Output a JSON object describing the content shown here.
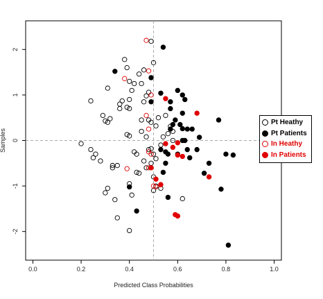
{
  "chart_data": {
    "type": "scatter",
    "title": "",
    "xlabel": "Predicted Class Probabilities",
    "ylabel": "Samples",
    "xlim": [
      -0.03,
      1.03
    ],
    "ylim": [
      -2.63,
      2.63
    ],
    "xticks": [
      "0.0",
      "0.2",
      "0.4",
      "0.6",
      "0.8",
      "1.0"
    ],
    "xtick_values": [
      0,
      0.2,
      0.4,
      0.6,
      0.8,
      1.0
    ],
    "yticks": [
      "-2",
      "-1",
      "0",
      "1",
      "2"
    ],
    "ytick_values": [
      -2,
      -1,
      0,
      1,
      2
    ],
    "reference_lines": {
      "x": 0.5,
      "y": 0
    },
    "grid": false,
    "legend_position": "right",
    "series": [
      {
        "name": "Pt Heathy",
        "color": "#000000",
        "filled": false,
        "points": [
          [
            0.49,
            2.18
          ],
          [
            0.5,
            1.71
          ],
          [
            0.38,
            1.78
          ],
          [
            0.39,
            1.6
          ],
          [
            0.46,
            1.55
          ],
          [
            0.44,
            1.46
          ],
          [
            0.4,
            1.3
          ],
          [
            0.42,
            1.25
          ],
          [
            0.45,
            1.25
          ],
          [
            0.31,
            1.15
          ],
          [
            0.41,
            1.1
          ],
          [
            0.48,
            1.06
          ],
          [
            0.47,
            0.98
          ],
          [
            0.4,
            0.9
          ],
          [
            0.37,
            0.87
          ],
          [
            0.24,
            0.87
          ],
          [
            0.46,
            0.85
          ],
          [
            0.36,
            0.8
          ],
          [
            0.36,
            0.7
          ],
          [
            0.4,
            0.7
          ],
          [
            0.39,
            0.73
          ],
          [
            0.29,
            0.55
          ],
          [
            0.32,
            0.48
          ],
          [
            0.3,
            0.43
          ],
          [
            0.31,
            0.4
          ],
          [
            0.45,
            0.45
          ],
          [
            0.48,
            0.45
          ],
          [
            0.49,
            0.4
          ],
          [
            0.51,
            0.32
          ],
          [
            0.57,
            0.31
          ],
          [
            0.58,
            0.2
          ],
          [
            0.56,
            0.15
          ],
          [
            0.39,
            0.13
          ],
          [
            0.4,
            0.1
          ],
          [
            0.47,
            0.08
          ],
          [
            0.54,
            0.08
          ],
          [
            0.2,
            -0.07
          ],
          [
            0.24,
            -0.2
          ],
          [
            0.26,
            -0.3
          ],
          [
            0.25,
            -0.38
          ],
          [
            0.28,
            -0.45
          ],
          [
            0.33,
            -0.55
          ],
          [
            0.35,
            -0.55
          ],
          [
            0.33,
            -0.6
          ],
          [
            0.42,
            -0.25
          ],
          [
            0.43,
            -0.3
          ],
          [
            0.48,
            -0.2
          ],
          [
            0.49,
            -0.18
          ],
          [
            0.5,
            -0.3
          ],
          [
            0.51,
            -0.4
          ],
          [
            0.46,
            -0.45
          ],
          [
            0.49,
            -0.5
          ],
          [
            0.47,
            -0.6
          ],
          [
            0.43,
            -0.7
          ],
          [
            0.44,
            -0.72
          ],
          [
            0.4,
            -0.95
          ],
          [
            0.41,
            -1.2
          ],
          [
            0.31,
            -1.05
          ],
          [
            0.3,
            -1.15
          ],
          [
            0.34,
            -1.3
          ],
          [
            0.35,
            -1.7
          ],
          [
            0.4,
            -1.98
          ],
          [
            0.5,
            -1.1
          ],
          [
            0.51,
            -1.0
          ],
          [
            0.53,
            -1.05
          ],
          [
            0.62,
            -1.28
          ],
          [
            0.5,
            -0.8
          ],
          [
            0.52,
            0.5
          ],
          [
            0.55,
            0.55
          ],
          [
            0.45,
            0.2
          ],
          [
            0.53,
            -0.1
          ],
          [
            0.58,
            0.0
          ]
        ]
      },
      {
        "name": "Pt Patients",
        "color": "#000000",
        "filled": true,
        "points": [
          [
            0.54,
            2.05
          ],
          [
            0.34,
            1.52
          ],
          [
            0.49,
            1.38
          ],
          [
            0.53,
            1.04
          ],
          [
            0.6,
            1.1
          ],
          [
            0.62,
            1.0
          ],
          [
            0.63,
            0.9
          ],
          [
            0.57,
            0.85
          ],
          [
            0.49,
            0.85
          ],
          [
            0.62,
            0.6
          ],
          [
            0.59,
            0.45
          ],
          [
            0.58,
            0.35
          ],
          [
            0.57,
            0.25
          ],
          [
            0.61,
            0.35
          ],
          [
            0.62,
            0.26
          ],
          [
            0.64,
            0.25
          ],
          [
            0.66,
            0.25
          ],
          [
            0.69,
            0.07
          ],
          [
            0.63,
            0.0
          ],
          [
            0.62,
            0.0
          ],
          [
            0.64,
            -0.2
          ],
          [
            0.53,
            -0.2
          ],
          [
            0.55,
            -0.25
          ],
          [
            0.56,
            -0.3
          ],
          [
            0.6,
            -0.3
          ],
          [
            0.65,
            -0.38
          ],
          [
            0.54,
            -0.7
          ],
          [
            0.55,
            -0.5
          ],
          [
            0.68,
            -0.2
          ],
          [
            0.77,
            0.45
          ],
          [
            0.73,
            -0.5
          ],
          [
            0.8,
            -0.3
          ],
          [
            0.83,
            -0.32
          ],
          [
            0.71,
            -0.72
          ],
          [
            0.78,
            -1.07
          ],
          [
            0.56,
            -1.25
          ],
          [
            0.4,
            -1.02
          ],
          [
            0.43,
            -1.55
          ],
          [
            0.81,
            -2.3
          ],
          [
            0.57,
            0.7
          ]
        ]
      },
      {
        "name": "In Heathy",
        "color": "#e00000",
        "filled": false,
        "points": [
          [
            0.47,
            2.2
          ],
          [
            0.48,
            1.53
          ],
          [
            0.38,
            1.36
          ],
          [
            0.49,
            1.0
          ],
          [
            0.47,
            0.55
          ],
          [
            0.48,
            0.25
          ],
          [
            0.48,
            -0.25
          ],
          [
            0.49,
            -0.3
          ],
          [
            0.48,
            -0.6
          ],
          [
            0.39,
            -0.62
          ],
          [
            0.5,
            -1.0
          ],
          [
            0.51,
            -1.02
          ]
        ]
      },
      {
        "name": "In Patients",
        "color": "#e00000",
        "filled": true,
        "points": [
          [
            0.55,
            0.92
          ],
          [
            0.68,
            0.6
          ],
          [
            0.55,
            -0.07
          ],
          [
            0.6,
            -0.05
          ],
          [
            0.58,
            -0.15
          ],
          [
            0.6,
            -0.32
          ],
          [
            0.62,
            -0.35
          ],
          [
            0.73,
            -0.8
          ],
          [
            0.49,
            -0.6
          ],
          [
            0.51,
            -0.85
          ],
          [
            0.53,
            -0.97
          ],
          [
            0.59,
            -1.63
          ],
          [
            0.6,
            -1.66
          ]
        ]
      }
    ]
  }
}
